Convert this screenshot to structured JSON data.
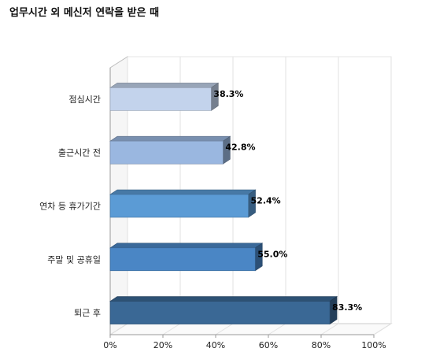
{
  "chart_data": {
    "type": "bar",
    "orientation": "horizontal",
    "title": "업무시간 외 메신저 연락을 받은 때",
    "categories": [
      "점심시간",
      "출근시간 전",
      "연차 등 휴가기간",
      "주말 및 공휴일",
      "퇴근 후"
    ],
    "values": [
      38.3,
      42.8,
      52.4,
      55.0,
      83.3
    ],
    "value_labels": [
      "38.3%",
      "42.8%",
      "52.4%",
      "55.0%",
      "83.3%"
    ],
    "colors": [
      "#c3d3ec",
      "#9ab7e0",
      "#5b9bd5",
      "#4a86c5",
      "#3a6895"
    ],
    "xlim": [
      0,
      100
    ],
    "x_ticks": [
      "0%",
      "20%",
      "40%",
      "60%",
      "80%",
      "100%"
    ],
    "xlabel": "",
    "ylabel": "",
    "grid": true,
    "style": "3d",
    "legend": "none"
  }
}
